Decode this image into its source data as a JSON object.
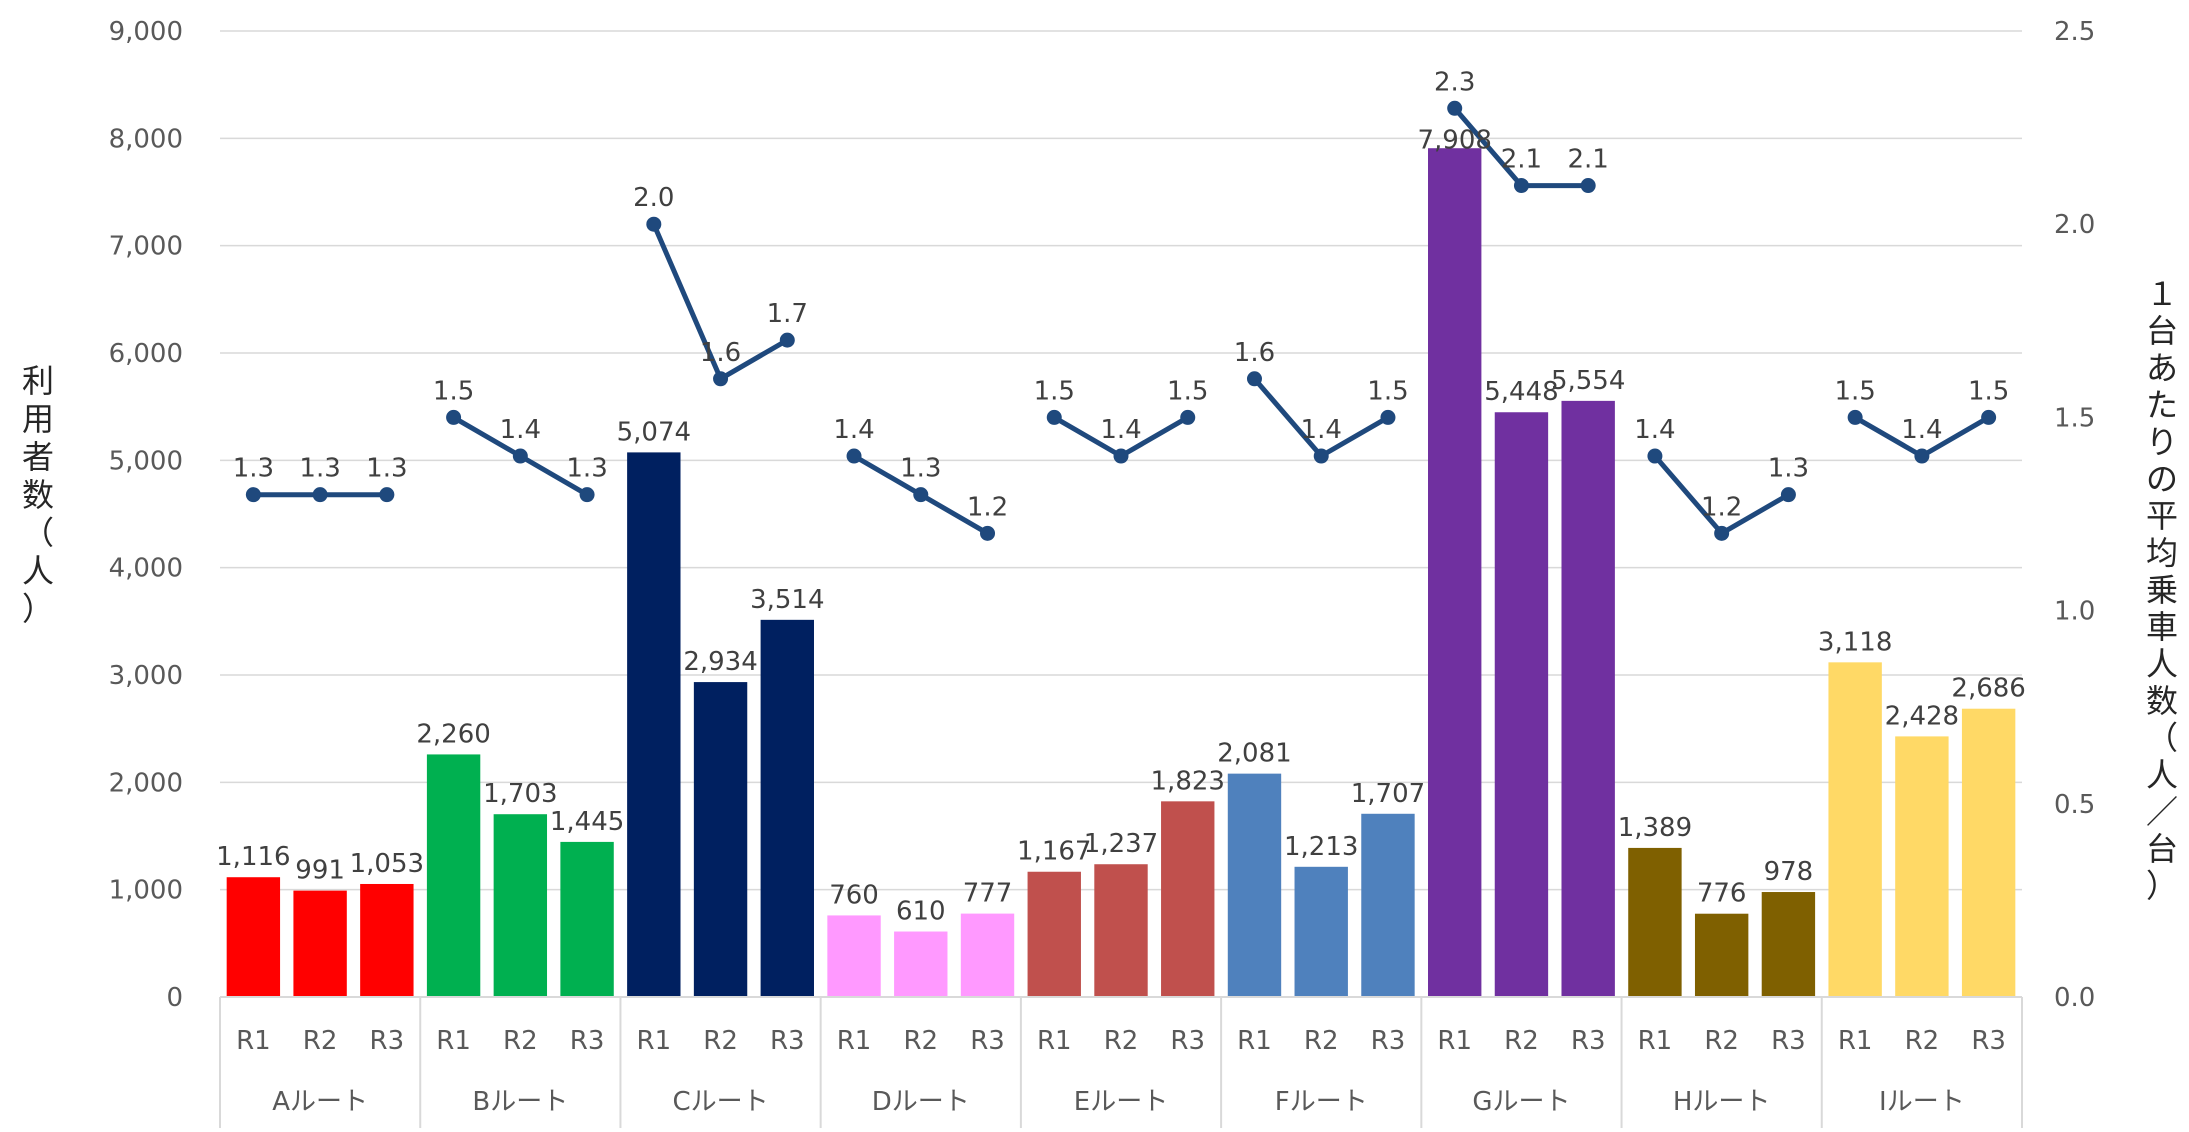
{
  "chart_data": {
    "type": "bar+line",
    "groups": [
      "Aルート",
      "Bルート",
      "Cルート",
      "Dルート",
      "Eルート",
      "Fルート",
      "Gルート",
      "Hルート",
      "Iルート"
    ],
    "sub_categories": [
      "R1",
      "R2",
      "R3"
    ],
    "bar_colors": [
      "#FF0000",
      "#00B050",
      "#002060",
      "#FF99FF",
      "#C0504D",
      "#4F81BD",
      "#7030A0",
      "#7F6000",
      "#FFD966"
    ],
    "line_color": "#1F497D",
    "grid_color": "#D9D9D9",
    "series": [
      {
        "type": "bar",
        "axis": "left",
        "values": [
          1116,
          991,
          1053,
          2260,
          1703,
          1445,
          5074,
          2934,
          3514,
          760,
          610,
          777,
          1167,
          1237,
          1823,
          2081,
          1213,
          1707,
          7908,
          5448,
          5554,
          1389,
          776,
          978,
          3118,
          2428,
          2686
        ],
        "labels": [
          "1,116",
          "991",
          "1,053",
          "2,260",
          "1,703",
          "1,445",
          "5,074",
          "2,934",
          "3,514",
          "760",
          "610",
          "777",
          "1,167",
          "1,237",
          "1,823",
          "2,081",
          "1,213",
          "1,707",
          "7,908",
          "5,448",
          "5,554",
          "1,389",
          "776",
          "978",
          "3,118",
          "2,428",
          "2,686"
        ]
      },
      {
        "type": "line",
        "axis": "right",
        "values": [
          1.3,
          1.3,
          1.3,
          1.5,
          1.4,
          1.3,
          2.0,
          1.6,
          1.7,
          1.4,
          1.3,
          1.2,
          1.5,
          1.4,
          1.5,
          1.6,
          1.4,
          1.5,
          2.3,
          2.1,
          2.1,
          1.4,
          1.2,
          1.3,
          1.5,
          1.4,
          1.5
        ],
        "labels": [
          "1.3",
          "1.3",
          "1.3",
          "1.5",
          "1.4",
          "1.3",
          "2.0",
          "1.6",
          "1.7",
          "1.4",
          "1.3",
          "1.2",
          "1.5",
          "1.4",
          "1.5",
          "1.6",
          "1.4",
          "1.5",
          "2.3",
          "2.1",
          "2.1",
          "1.4",
          "1.2",
          "1.3",
          "1.5",
          "1.4",
          "1.5"
        ]
      }
    ],
    "y_left": {
      "label": "利用者数（人）",
      "ylim": [
        0,
        9000
      ],
      "ticks": [
        0,
        1000,
        2000,
        3000,
        4000,
        5000,
        6000,
        7000,
        8000,
        9000
      ],
      "tick_labels": [
        "0",
        "1,000",
        "2,000",
        "3,000",
        "4,000",
        "5,000",
        "6,000",
        "7,000",
        "8,000",
        "9,000"
      ]
    },
    "y_right": {
      "label": "１台あたりの平均乗車人数（人／台）",
      "ylim": [
        0,
        2.5
      ],
      "ticks": [
        0,
        0.5,
        1.0,
        1.5,
        2.0,
        2.5
      ],
      "tick_labels": [
        "0.0",
        "0.5",
        "1.0",
        "1.5",
        "2.0",
        "2.5"
      ]
    },
    "grid": true,
    "legend": "none"
  }
}
